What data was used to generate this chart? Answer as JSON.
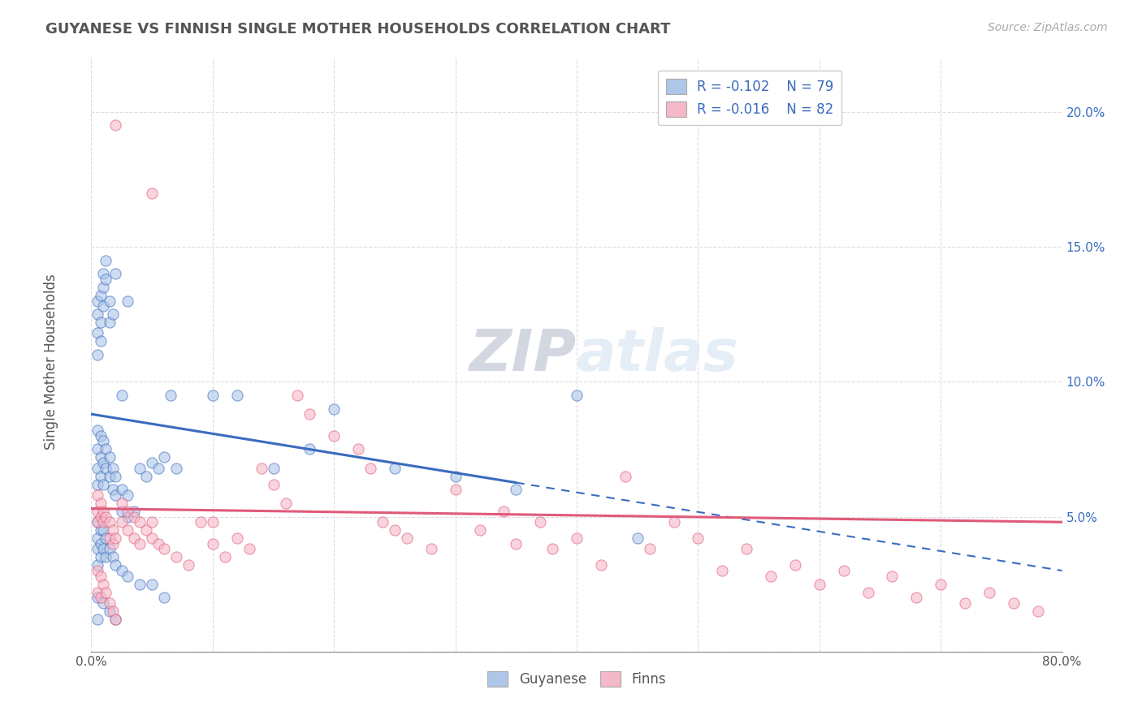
{
  "title": "GUYANESE VS FINNISH SINGLE MOTHER HOUSEHOLDS CORRELATION CHART",
  "source": "Source: ZipAtlas.com",
  "ylabel": "Single Mother Households",
  "xlim": [
    0.0,
    0.8
  ],
  "ylim": [
    0.0,
    0.22
  ],
  "blue_color": "#aec6e8",
  "pink_color": "#f5b8c8",
  "blue_line_color": "#3a6bbf",
  "pink_line_color": "#e05a7a",
  "title_color": "#555555",
  "watermark_color": "#d0dff0",
  "blue_scatter": [
    [
      0.005,
      0.13
    ],
    [
      0.005,
      0.125
    ],
    [
      0.005,
      0.118
    ],
    [
      0.005,
      0.11
    ],
    [
      0.008,
      0.132
    ],
    [
      0.008,
      0.122
    ],
    [
      0.008,
      0.115
    ],
    [
      0.01,
      0.14
    ],
    [
      0.01,
      0.128
    ],
    [
      0.01,
      0.135
    ],
    [
      0.012,
      0.145
    ],
    [
      0.012,
      0.138
    ],
    [
      0.015,
      0.13
    ],
    [
      0.015,
      0.122
    ],
    [
      0.018,
      0.125
    ],
    [
      0.02,
      0.14
    ],
    [
      0.025,
      0.095
    ],
    [
      0.03,
      0.13
    ],
    [
      0.005,
      0.082
    ],
    [
      0.005,
      0.075
    ],
    [
      0.005,
      0.068
    ],
    [
      0.005,
      0.062
    ],
    [
      0.008,
      0.08
    ],
    [
      0.008,
      0.072
    ],
    [
      0.008,
      0.065
    ],
    [
      0.01,
      0.078
    ],
    [
      0.01,
      0.07
    ],
    [
      0.01,
      0.062
    ],
    [
      0.012,
      0.075
    ],
    [
      0.012,
      0.068
    ],
    [
      0.015,
      0.072
    ],
    [
      0.015,
      0.065
    ],
    [
      0.018,
      0.068
    ],
    [
      0.018,
      0.06
    ],
    [
      0.02,
      0.065
    ],
    [
      0.02,
      0.058
    ],
    [
      0.025,
      0.06
    ],
    [
      0.025,
      0.052
    ],
    [
      0.03,
      0.058
    ],
    [
      0.03,
      0.05
    ],
    [
      0.035,
      0.052
    ],
    [
      0.04,
      0.068
    ],
    [
      0.045,
      0.065
    ],
    [
      0.05,
      0.07
    ],
    [
      0.055,
      0.068
    ],
    [
      0.06,
      0.072
    ],
    [
      0.065,
      0.095
    ],
    [
      0.07,
      0.068
    ],
    [
      0.005,
      0.048
    ],
    [
      0.005,
      0.042
    ],
    [
      0.005,
      0.038
    ],
    [
      0.005,
      0.032
    ],
    [
      0.008,
      0.045
    ],
    [
      0.008,
      0.04
    ],
    [
      0.008,
      0.035
    ],
    [
      0.01,
      0.045
    ],
    [
      0.01,
      0.038
    ],
    [
      0.012,
      0.042
    ],
    [
      0.012,
      0.035
    ],
    [
      0.015,
      0.038
    ],
    [
      0.018,
      0.035
    ],
    [
      0.02,
      0.032
    ],
    [
      0.025,
      0.03
    ],
    [
      0.03,
      0.028
    ],
    [
      0.04,
      0.025
    ],
    [
      0.05,
      0.025
    ],
    [
      0.06,
      0.02
    ],
    [
      0.1,
      0.095
    ],
    [
      0.12,
      0.095
    ],
    [
      0.15,
      0.068
    ],
    [
      0.18,
      0.075
    ],
    [
      0.2,
      0.09
    ],
    [
      0.25,
      0.068
    ],
    [
      0.3,
      0.065
    ],
    [
      0.35,
      0.06
    ],
    [
      0.4,
      0.095
    ],
    [
      0.45,
      0.042
    ],
    [
      0.005,
      0.02
    ],
    [
      0.005,
      0.012
    ],
    [
      0.01,
      0.018
    ],
    [
      0.015,
      0.015
    ],
    [
      0.02,
      0.012
    ]
  ],
  "pink_scatter": [
    [
      0.02,
      0.195
    ],
    [
      0.05,
      0.17
    ],
    [
      0.005,
      0.058
    ],
    [
      0.005,
      0.052
    ],
    [
      0.005,
      0.048
    ],
    [
      0.008,
      0.055
    ],
    [
      0.008,
      0.05
    ],
    [
      0.01,
      0.052
    ],
    [
      0.01,
      0.048
    ],
    [
      0.012,
      0.05
    ],
    [
      0.015,
      0.048
    ],
    [
      0.015,
      0.042
    ],
    [
      0.018,
      0.045
    ],
    [
      0.018,
      0.04
    ],
    [
      0.02,
      0.042
    ],
    [
      0.025,
      0.055
    ],
    [
      0.025,
      0.048
    ],
    [
      0.03,
      0.052
    ],
    [
      0.03,
      0.045
    ],
    [
      0.035,
      0.05
    ],
    [
      0.035,
      0.042
    ],
    [
      0.04,
      0.048
    ],
    [
      0.04,
      0.04
    ],
    [
      0.045,
      0.045
    ],
    [
      0.05,
      0.042
    ],
    [
      0.05,
      0.048
    ],
    [
      0.055,
      0.04
    ],
    [
      0.06,
      0.038
    ],
    [
      0.07,
      0.035
    ],
    [
      0.08,
      0.032
    ],
    [
      0.1,
      0.048
    ],
    [
      0.12,
      0.042
    ],
    [
      0.13,
      0.038
    ],
    [
      0.14,
      0.068
    ],
    [
      0.15,
      0.062
    ],
    [
      0.16,
      0.055
    ],
    [
      0.17,
      0.095
    ],
    [
      0.18,
      0.088
    ],
    [
      0.2,
      0.08
    ],
    [
      0.22,
      0.075
    ],
    [
      0.23,
      0.068
    ],
    [
      0.24,
      0.048
    ],
    [
      0.25,
      0.045
    ],
    [
      0.26,
      0.042
    ],
    [
      0.28,
      0.038
    ],
    [
      0.3,
      0.06
    ],
    [
      0.32,
      0.045
    ],
    [
      0.34,
      0.052
    ],
    [
      0.35,
      0.04
    ],
    [
      0.37,
      0.048
    ],
    [
      0.38,
      0.038
    ],
    [
      0.4,
      0.042
    ],
    [
      0.42,
      0.032
    ],
    [
      0.44,
      0.065
    ],
    [
      0.46,
      0.038
    ],
    [
      0.48,
      0.048
    ],
    [
      0.5,
      0.042
    ],
    [
      0.52,
      0.03
    ],
    [
      0.54,
      0.038
    ],
    [
      0.56,
      0.028
    ],
    [
      0.58,
      0.032
    ],
    [
      0.6,
      0.025
    ],
    [
      0.62,
      0.03
    ],
    [
      0.64,
      0.022
    ],
    [
      0.66,
      0.028
    ],
    [
      0.68,
      0.02
    ],
    [
      0.7,
      0.025
    ],
    [
      0.72,
      0.018
    ],
    [
      0.74,
      0.022
    ],
    [
      0.76,
      0.018
    ],
    [
      0.78,
      0.015
    ],
    [
      0.005,
      0.03
    ],
    [
      0.005,
      0.022
    ],
    [
      0.008,
      0.028
    ],
    [
      0.008,
      0.02
    ],
    [
      0.01,
      0.025
    ],
    [
      0.012,
      0.022
    ],
    [
      0.015,
      0.018
    ],
    [
      0.018,
      0.015
    ],
    [
      0.02,
      0.012
    ],
    [
      0.09,
      0.048
    ],
    [
      0.1,
      0.04
    ],
    [
      0.11,
      0.035
    ]
  ],
  "blue_trend_start_x": 0.0,
  "blue_trend_end_x": 0.8,
  "blue_trend_start_y": 0.088,
  "blue_trend_end_y": 0.03,
  "pink_trend_start_x": 0.0,
  "pink_trend_end_x": 0.8,
  "pink_trend_start_y": 0.053,
  "pink_trend_end_y": 0.048
}
